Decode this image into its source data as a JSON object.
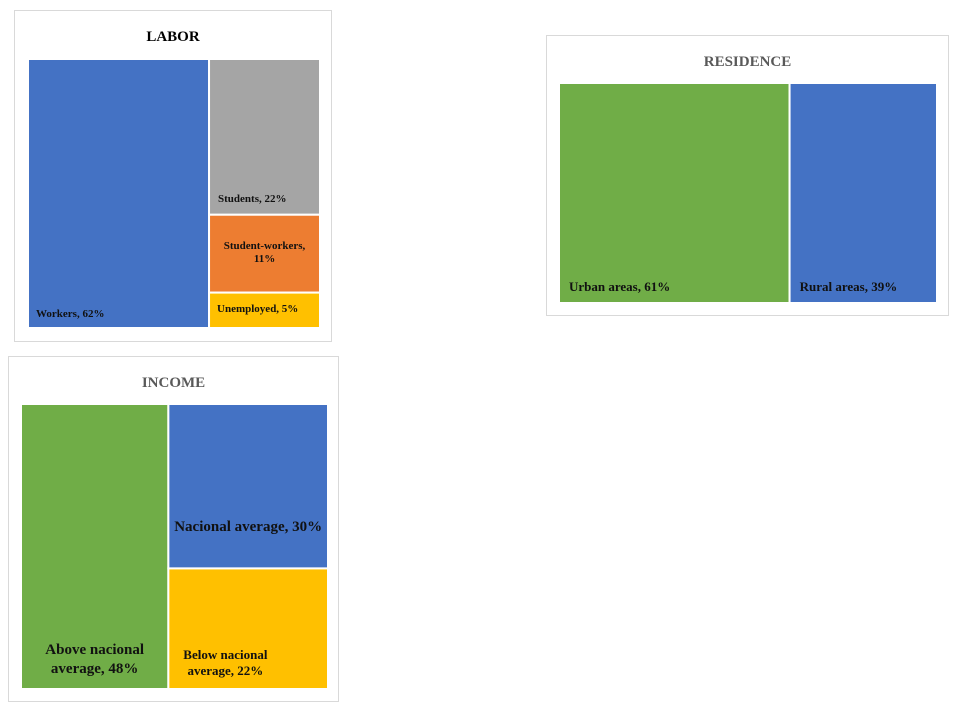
{
  "chart_data": [
    {
      "id": "labor",
      "type": "treemap",
      "title": "LABOR",
      "unit": "%",
      "items": [
        {
          "name": "Workers",
          "value": 62,
          "label": "Workers, 62%",
          "color": "#4472C4"
        },
        {
          "name": "Students",
          "value": 22,
          "label": "Students, 22%",
          "color": "#A5A5A5"
        },
        {
          "name": "Student-workers",
          "value": 11,
          "label": "Student-workers, 11%",
          "color": "#ED7D31"
        },
        {
          "name": "Unemployed",
          "value": 5,
          "label": "Unemployed, 5%",
          "color": "#FFC000"
        }
      ]
    },
    {
      "id": "residence",
      "type": "treemap",
      "title": "RESIDENCE",
      "unit": "%",
      "items": [
        {
          "name": "Urban areas",
          "value": 61,
          "label": "Urban areas, 61%",
          "color": "#70AD47"
        },
        {
          "name": "Rural areas",
          "value": 39,
          "label": "Rural areas, 39%",
          "color": "#4472C4"
        }
      ]
    },
    {
      "id": "income",
      "type": "treemap",
      "title": "INCOME",
      "unit": "%",
      "items": [
        {
          "name": "Above nacional average",
          "value": 48,
          "label": "Above nacional average, 48%",
          "color": "#70AD47"
        },
        {
          "name": "Nacional average",
          "value": 30,
          "label": "Nacional average, 30%",
          "color": "#4472C4"
        },
        {
          "name": "Below nacional average",
          "value": 22,
          "label": "Below nacional average, 22%",
          "color": "#FFC000"
        }
      ]
    }
  ]
}
